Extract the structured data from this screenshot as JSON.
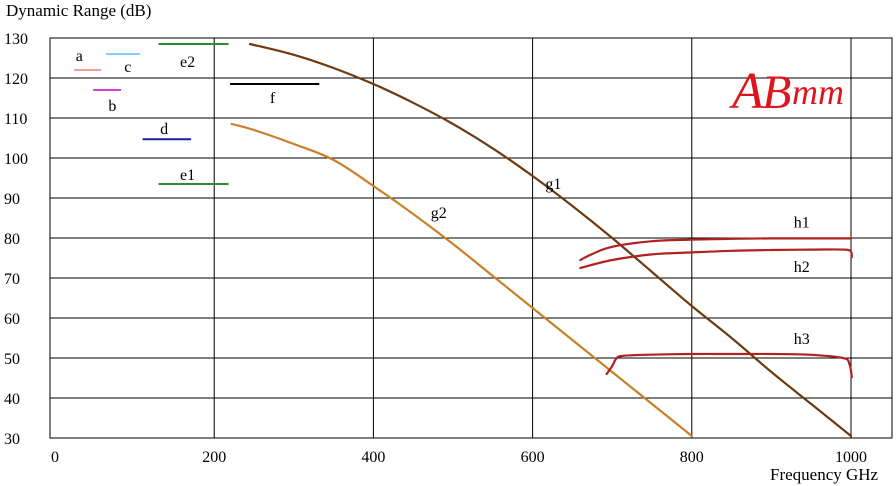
{
  "chart_data": {
    "type": "line",
    "title": "",
    "ylabel": "Dynamic Range (dB)",
    "xlabel": "Frequency GHz",
    "xlim": [
      0,
      1000
    ],
    "ylim": [
      30,
      130
    ],
    "grid": true,
    "x_ticks": [
      {
        "value": 0,
        "label": "0"
      },
      {
        "value": 200,
        "label": "200"
      },
      {
        "value": 400,
        "label": "400"
      },
      {
        "value": 600,
        "label": "600"
      },
      {
        "value": 800,
        "label": "800"
      },
      {
        "value": 1000,
        "label": "1000"
      }
    ],
    "y_ticks": [
      {
        "value": 30,
        "label": "30"
      },
      {
        "value": 40,
        "label": "40"
      },
      {
        "value": 50,
        "label": "50"
      },
      {
        "value": 60,
        "label": "60"
      },
      {
        "value": 70,
        "label": "70"
      },
      {
        "value": 80,
        "label": "80"
      },
      {
        "value": 90,
        "label": "90"
      },
      {
        "value": 100,
        "label": "100"
      },
      {
        "value": 110,
        "label": "110"
      },
      {
        "value": 120,
        "label": "120"
      },
      {
        "value": 130,
        "label": "130"
      }
    ],
    "segments": [
      {
        "label": "a",
        "color": "#f0a090",
        "x": [
          24,
          58
        ],
        "y": 122.0,
        "label_at": [
          26,
          124.3
        ]
      },
      {
        "label": "c",
        "color": "#87cefa",
        "x": [
          64,
          107
        ],
        "y": 126.0,
        "label_at": [
          87,
          121.5
        ]
      },
      {
        "label": "b",
        "color": "#d63fd0",
        "x": [
          48,
          83
        ],
        "y": 117.0,
        "label_at": [
          67,
          111.8
        ]
      },
      {
        "label": "e2",
        "color": "#2e8b2e",
        "x": [
          130,
          218
        ],
        "y": 128.5,
        "label_at": [
          157,
          122.8
        ]
      },
      {
        "label": "f",
        "color": "#000000",
        "x": [
          220,
          332
        ],
        "y": 118.5,
        "label_at": [
          270,
          113.8
        ]
      },
      {
        "label": "d",
        "color": "#1e1e9a",
        "x": [
          110,
          171
        ],
        "y": 104.7,
        "label_at": [
          132,
          106.0
        ]
      },
      {
        "label": "e1",
        "color": "#2e8b2e",
        "x": [
          130,
          218
        ],
        "y": 93.5,
        "label_at": [
          157,
          94.5
        ]
      }
    ],
    "series": [
      {
        "label": "g1",
        "color": "#6e3a10",
        "label_at": [
          616,
          92.2
        ],
        "x": [
          245,
          300,
          350,
          400,
          450,
          500,
          550,
          600,
          650,
          700,
          750,
          800,
          850,
          900,
          950,
          1000
        ],
        "y": [
          128.5,
          125.8,
          122.5,
          118.5,
          113.8,
          108.5,
          102.4,
          95.5,
          88.0,
          80.0,
          71.5,
          63.0,
          55.0,
          46.5,
          38.5,
          30.5
        ]
      },
      {
        "label": "g2",
        "color": "#c8802a",
        "label_at": [
          472,
          85.0
        ],
        "x": [
          222,
          250,
          300,
          350,
          400,
          450,
          500,
          550,
          600,
          650,
          700,
          750,
          800
        ],
        "y": [
          108.5,
          107.0,
          103.5,
          99.5,
          93.0,
          86.0,
          78.5,
          70.5,
          62.5,
          54.5,
          46.5,
          38.5,
          30.5
        ]
      },
      {
        "label": "h1",
        "color": "#b22020",
        "label_at": [
          928,
          82.6
        ],
        "x": [
          660,
          675,
          700,
          750,
          800,
          850,
          900,
          950,
          1000
        ],
        "y": [
          74.5,
          76.0,
          77.8,
          79.2,
          79.6,
          79.8,
          79.9,
          79.9,
          79.9
        ]
      },
      {
        "label": "h2",
        "color": "#b22020",
        "label_at": [
          928,
          71.5
        ],
        "x": [
          660,
          700,
          750,
          800,
          850,
          900,
          950,
          992,
          1000,
          1001
        ],
        "y": [
          72.5,
          74.5,
          75.9,
          76.4,
          76.8,
          77.0,
          77.1,
          77.1,
          76.5,
          75.2
        ]
      },
      {
        "label": "h3",
        "color": "#b22020",
        "label_at": [
          928,
          53.5
        ],
        "x": [
          693,
          700,
          705,
          712,
          740,
          800,
          850,
          900,
          950,
          990,
          998,
          1001
        ],
        "y": [
          46.0,
          48.0,
          49.8,
          50.5,
          50.8,
          51.0,
          51.0,
          51.0,
          50.8,
          50.0,
          48.5,
          45.2
        ]
      }
    ]
  },
  "logo": {
    "text_a": "A",
    "text_b": "B",
    "text_c": "mm",
    "color": "#e0141c"
  }
}
